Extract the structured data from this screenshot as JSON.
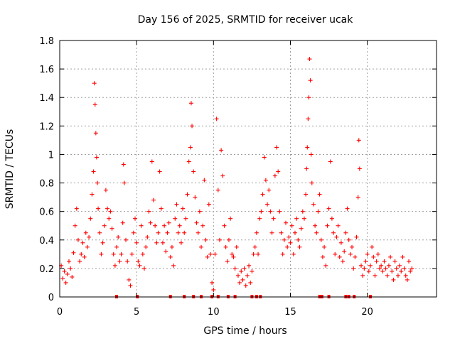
{
  "chart_data": {
    "type": "scatter",
    "title": "Day 156 of 2025, SRMTID for receiver ucak",
    "xlabel": "GPS time / hours",
    "ylabel": "SRMTID / TECUs",
    "xlim": [
      0,
      24.5
    ],
    "ylim": [
      0,
      1.8
    ],
    "xticks": [
      0,
      5,
      10,
      15,
      20
    ],
    "yticks": [
      0,
      0.2,
      0.4,
      0.6,
      0.8,
      1,
      1.2,
      1.4,
      1.6,
      1.8
    ],
    "grid": true,
    "marker": "+",
    "color": "#ff0000",
    "series": [
      {
        "name": "SRMTID",
        "points": [
          [
            0.1,
            0.22
          ],
          [
            0.2,
            0.13
          ],
          [
            0.3,
            0.18
          ],
          [
            0.4,
            0.1
          ],
          [
            0.5,
            0.16
          ],
          [
            0.6,
            0.25
          ],
          [
            0.7,
            0.2
          ],
          [
            0.8,
            0.14
          ],
          [
            0.9,
            0.31
          ],
          [
            1.0,
            0.5
          ],
          [
            1.1,
            0.62
          ],
          [
            1.2,
            0.4
          ],
          [
            1.3,
            0.25
          ],
          [
            1.4,
            0.3
          ],
          [
            1.5,
            0.38
          ],
          [
            1.6,
            0.28
          ],
          [
            1.7,
            0.45
          ],
          [
            1.8,
            0.35
          ],
          [
            1.9,
            0.42
          ],
          [
            2.0,
            0.55
          ],
          [
            2.1,
            0.72
          ],
          [
            2.2,
            0.88
          ],
          [
            2.25,
            1.5
          ],
          [
            2.3,
            1.35
          ],
          [
            2.35,
            1.15
          ],
          [
            2.4,
            0.98
          ],
          [
            2.45,
            0.8
          ],
          [
            2.5,
            0.62
          ],
          [
            2.6,
            0.45
          ],
          [
            2.7,
            0.3
          ],
          [
            2.8,
            0.38
          ],
          [
            2.9,
            0.5
          ],
          [
            3.0,
            0.75
          ],
          [
            3.1,
            0.62
          ],
          [
            3.2,
            0.55
          ],
          [
            3.3,
            0.6
          ],
          [
            3.4,
            0.48
          ],
          [
            3.5,
            0.3
          ],
          [
            3.6,
            0.22
          ],
          [
            3.7,
            0.35
          ],
          [
            3.8,
            0.42
          ],
          [
            3.9,
            0.25
          ],
          [
            4.0,
            0.3
          ],
          [
            4.1,
            0.52
          ],
          [
            4.15,
            0.93
          ],
          [
            4.2,
            0.8
          ],
          [
            4.3,
            0.4
          ],
          [
            4.4,
            0.25
          ],
          [
            4.5,
            0.12
          ],
          [
            4.6,
            0.08
          ],
          [
            4.7,
            0.3
          ],
          [
            4.8,
            0.45
          ],
          [
            4.9,
            0.55
          ],
          [
            5.0,
            0.38
          ],
          [
            5.1,
            0.25
          ],
          [
            5.2,
            0.22
          ],
          [
            5.3,
            0.5
          ],
          [
            5.4,
            0.3
          ],
          [
            5.5,
            0.2
          ],
          [
            5.6,
            0.35
          ],
          [
            5.7,
            0.42
          ],
          [
            5.8,
            0.6
          ],
          [
            5.9,
            0.52
          ],
          [
            6.0,
            0.95
          ],
          [
            6.1,
            0.68
          ],
          [
            6.2,
            0.5
          ],
          [
            6.3,
            0.38
          ],
          [
            6.4,
            0.45
          ],
          [
            6.5,
            0.88
          ],
          [
            6.6,
            0.62
          ],
          [
            6.7,
            0.38
          ],
          [
            6.8,
            0.5
          ],
          [
            6.9,
            0.32
          ],
          [
            7.0,
            0.45
          ],
          [
            7.1,
            0.52
          ],
          [
            7.2,
            0.28
          ],
          [
            7.3,
            0.35
          ],
          [
            7.4,
            0.22
          ],
          [
            7.5,
            0.55
          ],
          [
            7.6,
            0.65
          ],
          [
            7.7,
            0.45
          ],
          [
            7.8,
            0.5
          ],
          [
            7.9,
            0.38
          ],
          [
            8.0,
            0.62
          ],
          [
            8.1,
            0.45
          ],
          [
            8.2,
            0.55
          ],
          [
            8.3,
            0.72
          ],
          [
            8.4,
            0.95
          ],
          [
            8.5,
            1.05
          ],
          [
            8.55,
            1.36
          ],
          [
            8.6,
            1.2
          ],
          [
            8.7,
            0.88
          ],
          [
            8.8,
            0.7
          ],
          [
            8.9,
            0.52
          ],
          [
            9.0,
            0.45
          ],
          [
            9.1,
            0.6
          ],
          [
            9.2,
            0.35
          ],
          [
            9.3,
            0.5
          ],
          [
            9.4,
            0.82
          ],
          [
            9.5,
            0.4
          ],
          [
            9.6,
            0.28
          ],
          [
            9.7,
            0.65
          ],
          [
            9.8,
            0.3
          ],
          [
            9.9,
            0.1
          ],
          [
            10.0,
            0.05
          ],
          [
            10.1,
            0.3
          ],
          [
            10.2,
            1.25
          ],
          [
            10.3,
            0.75
          ],
          [
            10.4,
            0.4
          ],
          [
            10.5,
            1.03
          ],
          [
            10.6,
            0.85
          ],
          [
            10.7,
            0.5
          ],
          [
            10.8,
            0.35
          ],
          [
            10.9,
            0.25
          ],
          [
            11.0,
            0.4
          ],
          [
            11.1,
            0.55
          ],
          [
            11.2,
            0.3
          ],
          [
            11.3,
            0.28
          ],
          [
            11.4,
            0.2
          ],
          [
            11.5,
            0.35
          ],
          [
            11.6,
            0.15
          ],
          [
            11.7,
            0.1
          ],
          [
            11.8,
            0.18
          ],
          [
            11.9,
            0.12
          ],
          [
            12.0,
            0.2
          ],
          [
            12.1,
            0.08
          ],
          [
            12.2,
            0.15
          ],
          [
            12.3,
            0.22
          ],
          [
            12.4,
            0.1
          ],
          [
            12.5,
            0.18
          ],
          [
            12.6,
            0.3
          ],
          [
            12.7,
            0.35
          ],
          [
            12.8,
            0.45
          ],
          [
            12.9,
            0.3
          ],
          [
            13.0,
            0.55
          ],
          [
            13.1,
            0.6
          ],
          [
            13.2,
            0.72
          ],
          [
            13.3,
            0.98
          ],
          [
            13.4,
            0.82
          ],
          [
            13.5,
            0.65
          ],
          [
            13.6,
            0.75
          ],
          [
            13.7,
            0.6
          ],
          [
            13.8,
            0.45
          ],
          [
            13.9,
            0.55
          ],
          [
            14.0,
            0.85
          ],
          [
            14.1,
            1.05
          ],
          [
            14.2,
            0.88
          ],
          [
            14.3,
            0.6
          ],
          [
            14.4,
            0.45
          ],
          [
            14.5,
            0.3
          ],
          [
            14.6,
            0.4
          ],
          [
            14.7,
            0.52
          ],
          [
            14.8,
            0.35
          ],
          [
            14.9,
            0.42
          ],
          [
            15.0,
            0.38
          ],
          [
            15.1,
            0.5
          ],
          [
            15.2,
            0.3
          ],
          [
            15.3,
            0.45
          ],
          [
            15.4,
            0.55
          ],
          [
            15.5,
            0.4
          ],
          [
            15.6,
            0.35
          ],
          [
            15.7,
            0.48
          ],
          [
            15.8,
            0.6
          ],
          [
            15.9,
            0.55
          ],
          [
            16.0,
            0.72
          ],
          [
            16.05,
            0.9
          ],
          [
            16.1,
            1.05
          ],
          [
            16.15,
            1.25
          ],
          [
            16.2,
            1.4
          ],
          [
            16.25,
            1.67
          ],
          [
            16.3,
            1.52
          ],
          [
            16.35,
            1.0
          ],
          [
            16.4,
            0.8
          ],
          [
            16.5,
            0.65
          ],
          [
            16.6,
            0.5
          ],
          [
            16.7,
            0.45
          ],
          [
            16.8,
            0.6
          ],
          [
            16.9,
            0.72
          ],
          [
            17.0,
            0.4
          ],
          [
            17.1,
            0.28
          ],
          [
            17.2,
            0.35
          ],
          [
            17.3,
            0.22
          ],
          [
            17.4,
            0.5
          ],
          [
            17.5,
            0.62
          ],
          [
            17.6,
            0.95
          ],
          [
            17.7,
            0.55
          ],
          [
            17.8,
            0.45
          ],
          [
            17.9,
            0.3
          ],
          [
            18.0,
            0.42
          ],
          [
            18.1,
            0.5
          ],
          [
            18.2,
            0.28
          ],
          [
            18.3,
            0.38
          ],
          [
            18.4,
            0.25
          ],
          [
            18.5,
            0.32
          ],
          [
            18.6,
            0.45
          ],
          [
            18.7,
            0.62
          ],
          [
            18.8,
            0.4
          ],
          [
            18.9,
            0.3
          ],
          [
            19.0,
            0.35
          ],
          [
            19.1,
            0.2
          ],
          [
            19.2,
            0.28
          ],
          [
            19.3,
            0.42
          ],
          [
            19.4,
            0.7
          ],
          [
            19.45,
            1.1
          ],
          [
            19.5,
            0.9
          ],
          [
            19.6,
            0.22
          ],
          [
            19.7,
            0.15
          ],
          [
            19.8,
            0.2
          ],
          [
            19.9,
            0.25
          ],
          [
            20.0,
            0.3
          ],
          [
            20.1,
            0.18
          ],
          [
            20.2,
            0.22
          ],
          [
            20.3,
            0.35
          ],
          [
            20.4,
            0.28
          ],
          [
            20.5,
            0.15
          ],
          [
            20.6,
            0.25
          ],
          [
            20.7,
            0.3
          ],
          [
            20.8,
            0.2
          ],
          [
            20.9,
            0.22
          ],
          [
            21.0,
            0.18
          ],
          [
            21.1,
            0.25
          ],
          [
            21.2,
            0.2
          ],
          [
            21.3,
            0.15
          ],
          [
            21.4,
            0.22
          ],
          [
            21.5,
            0.28
          ],
          [
            21.6,
            0.18
          ],
          [
            21.7,
            0.12
          ],
          [
            21.8,
            0.25
          ],
          [
            21.9,
            0.2
          ],
          [
            22.0,
            0.15
          ],
          [
            22.1,
            0.22
          ],
          [
            22.2,
            0.18
          ],
          [
            22.3,
            0.28
          ],
          [
            22.4,
            0.2
          ],
          [
            22.5,
            0.15
          ],
          [
            22.6,
            0.12
          ],
          [
            22.7,
            0.25
          ],
          [
            22.8,
            0.18
          ],
          [
            22.9,
            0.2
          ]
        ]
      }
    ],
    "gap_markers_x": [
      3.7,
      5.05,
      7.2,
      8.1,
      8.7,
      9.2,
      9.9,
      10.3,
      10.95,
      11.4,
      12.5,
      12.8,
      13.05,
      16.9,
      17.05,
      17.5,
      18.6,
      18.8,
      19.15,
      20.2
    ]
  }
}
